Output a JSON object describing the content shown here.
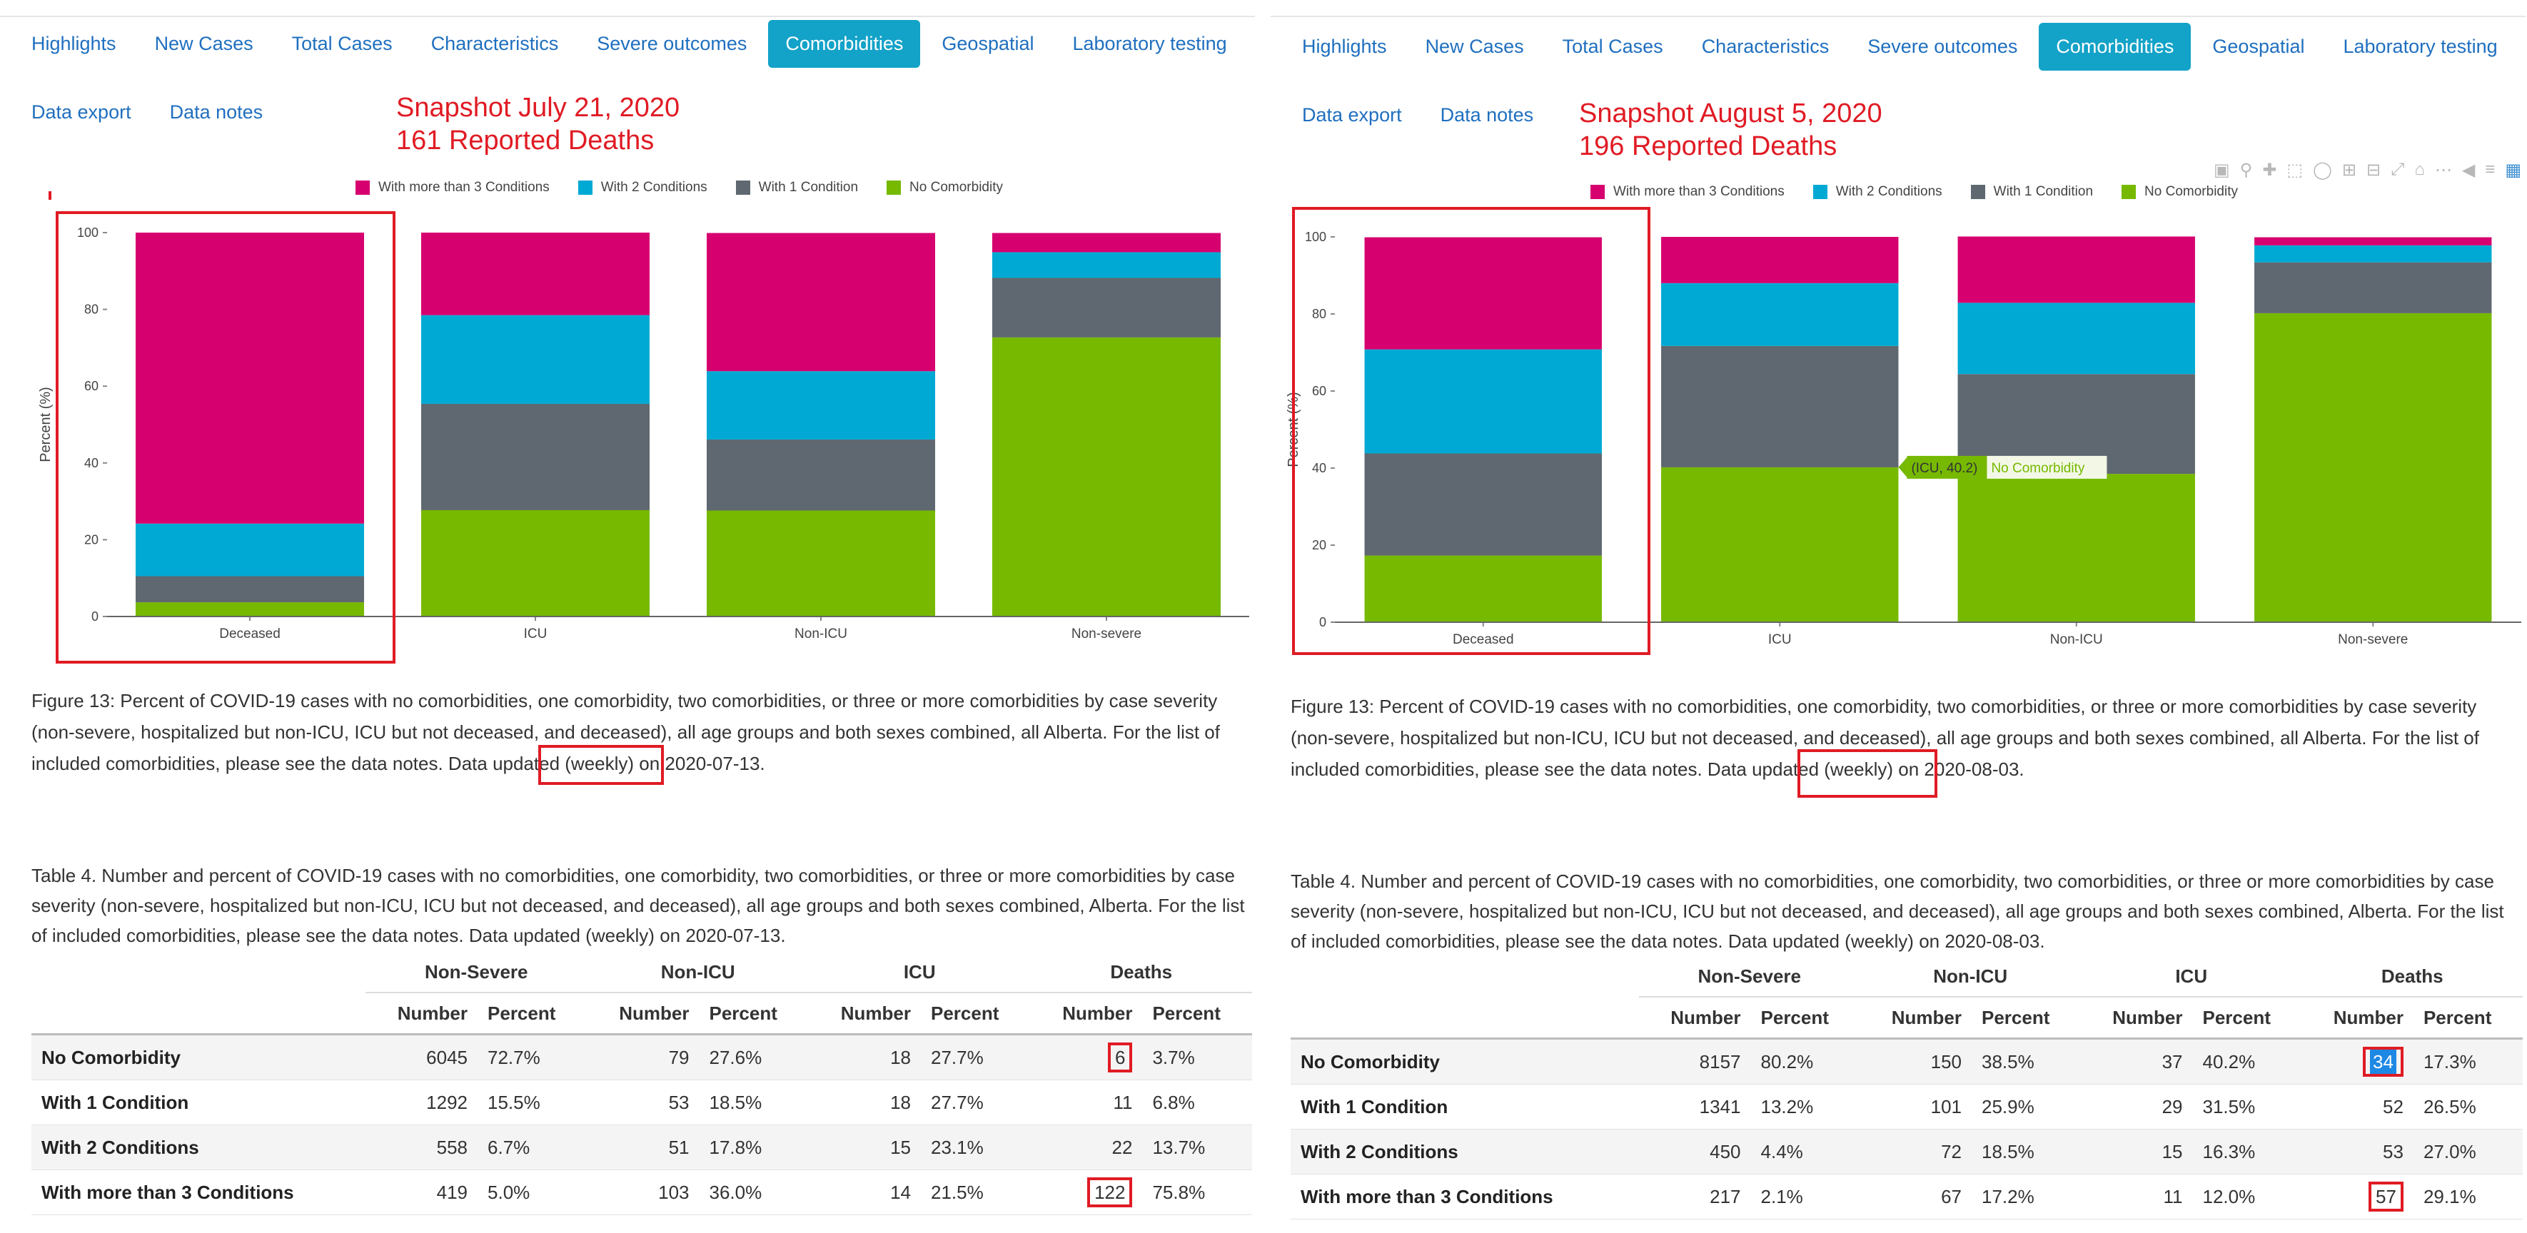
{
  "nav": {
    "tabs": [
      "Highlights",
      "New Cases",
      "Total Cases",
      "Characteristics",
      "Severe outcomes",
      "Comorbidities",
      "Geospatial",
      "Laboratory testing"
    ],
    "active_tab": "Comorbidities",
    "secondary": [
      "Data export",
      "Data notes"
    ]
  },
  "colors": {
    "more_than_3": "#d6006f",
    "two": "#00a9d4",
    "one": "#5f6870",
    "none": "#76b900",
    "annotation_red": "#e01b24",
    "active_tab": "#13a2c8",
    "link": "#1f6fbf"
  },
  "legend": [
    "With more than 3 Conditions",
    "With 2 Conditions",
    "With 1 Condition",
    "No Comorbidity"
  ],
  "modebar_icons": [
    "camera-icon",
    "zoom-icon",
    "pan-icon",
    "box-select-icon",
    "lasso-icon",
    "zoom-in-icon",
    "zoom-out-icon",
    "autoscale-icon",
    "reset-axes-icon",
    "spike-lines-icon",
    "hover-closest-icon",
    "hover-compare-icon",
    "plotly-logo-icon"
  ],
  "left": {
    "snapshot_line1": "Snapshot July 21, 2020",
    "snapshot_line2": "161 Reported Deaths",
    "caption": "Figure 13: Percent of COVID-19 cases with no comorbidities, one comorbidity, two comorbidities, or three or more comorbidities by case severity (non-severe, hospitalized but non-ICU, ICU but not deceased, and deceased), all age groups and both sexes combined, all Alberta. For the list of included comorbidities, please see the data notes. Data updated (weekly) on 2020-07-13.",
    "table_caption": "Table 4. Number and percent of COVID-19 cases with no comorbidities, one comorbidity, two comorbidities, or three or more comorbidities by case severity (non-severe, hospitalized but non-ICU, ICU but not deceased, and deceased), all age groups and both sexes combined, Alberta. For the list of included comorbidities, please see the data notes. Data updated (weekly) on 2020-07-13.",
    "table": {
      "groups": [
        "Non-Severe",
        "Non-ICU",
        "ICU",
        "Deaths"
      ],
      "subheaders": [
        "Number",
        "Percent"
      ],
      "rows": [
        {
          "label": "No Comorbidity",
          "cells": [
            "6045",
            "72.7%",
            "79",
            "27.6%",
            "18",
            "27.7%",
            "6",
            "3.7%"
          ]
        },
        {
          "label": "With 1 Condition",
          "cells": [
            "1292",
            "15.5%",
            "53",
            "18.5%",
            "18",
            "27.7%",
            "11",
            "6.8%"
          ]
        },
        {
          "label": "With 2 Conditions",
          "cells": [
            "558",
            "6.7%",
            "51",
            "17.8%",
            "15",
            "23.1%",
            "22",
            "13.7%"
          ]
        },
        {
          "label": "With more than 3 Conditions",
          "cells": [
            "419",
            "5.0%",
            "103",
            "36.0%",
            "14",
            "21.5%",
            "122",
            "75.8%"
          ]
        }
      ]
    }
  },
  "right": {
    "snapshot_line1": "Snapshot August 5, 2020",
    "snapshot_line2": "196 Reported Deaths",
    "tooltip_value": "(ICU, 40.2)",
    "tooltip_label": "No Comorbidity",
    "caption": "Figure 13: Percent of COVID-19 cases with no comorbidities, one comorbidity, two comorbidities, or three or more comorbidities by case severity (non-severe, hospitalized but non-ICU, ICU but not deceased, and deceased), all age groups and both sexes combined, all Alberta. For the list of included comorbidities, please see the data notes. Data updated (weekly) on 2020-08-03.",
    "table_caption": "Table 4. Number and percent of COVID-19 cases with no comorbidities, one comorbidity, two comorbidities, or three or more comorbidities by case severity (non-severe, hospitalized but non-ICU, ICU but not deceased, and deceased), all age groups and both sexes combined, Alberta. For the list of included comorbidities, please see the data notes. Data updated (weekly) on 2020-08-03.",
    "table": {
      "groups": [
        "Non-Severe",
        "Non-ICU",
        "ICU",
        "Deaths"
      ],
      "subheaders": [
        "Number",
        "Percent"
      ],
      "rows": [
        {
          "label": "No Comorbidity",
          "cells": [
            "8157",
            "80.2%",
            "150",
            "38.5%",
            "37",
            "40.2%",
            "34",
            "17.3%"
          ]
        },
        {
          "label": "With 1 Condition",
          "cells": [
            "1341",
            "13.2%",
            "101",
            "25.9%",
            "29",
            "31.5%",
            "52",
            "26.5%"
          ]
        },
        {
          "label": "With 2 Conditions",
          "cells": [
            "450",
            "4.4%",
            "72",
            "18.5%",
            "15",
            "16.3%",
            "53",
            "27.0%"
          ]
        },
        {
          "label": "With more than 3 Conditions",
          "cells": [
            "217",
            "2.1%",
            "67",
            "17.2%",
            "11",
            "12.0%",
            "57",
            "29.1%"
          ]
        }
      ]
    }
  },
  "chart_data": [
    {
      "type": "bar",
      "stacked": true,
      "categories": [
        "Deceased",
        "ICU",
        "Non-ICU",
        "Non-severe"
      ],
      "ylabel": "Percent (%)",
      "ylim": [
        0,
        100
      ],
      "yticks": [
        0,
        20,
        40,
        60,
        80,
        100
      ],
      "legend_position": "top",
      "series": [
        {
          "name": "No Comorbidity",
          "values": [
            3.7,
            27.7,
            27.6,
            72.7
          ]
        },
        {
          "name": "With 1 Condition",
          "values": [
            6.8,
            27.7,
            18.5,
            15.5
          ]
        },
        {
          "name": "With 2 Conditions",
          "values": [
            13.7,
            23.1,
            17.8,
            6.7
          ]
        },
        {
          "name": "With more than 3 Conditions",
          "values": [
            75.8,
            21.5,
            36.0,
            5.0
          ]
        }
      ]
    },
    {
      "type": "bar",
      "stacked": true,
      "categories": [
        "Deceased",
        "ICU",
        "Non-ICU",
        "Non-severe"
      ],
      "ylabel": "Percent (%)",
      "ylim": [
        0,
        100
      ],
      "yticks": [
        0,
        20,
        40,
        60,
        80,
        100
      ],
      "legend_position": "top",
      "series": [
        {
          "name": "No Comorbidity",
          "values": [
            17.3,
            40.2,
            38.5,
            80.2
          ]
        },
        {
          "name": "With 1 Condition",
          "values": [
            26.5,
            31.5,
            25.9,
            13.2
          ]
        },
        {
          "name": "With 2 Conditions",
          "values": [
            27.0,
            16.3,
            18.5,
            4.4
          ]
        },
        {
          "name": "With more than 3 Conditions",
          "values": [
            29.1,
            12.0,
            17.2,
            2.1
          ]
        }
      ]
    }
  ]
}
